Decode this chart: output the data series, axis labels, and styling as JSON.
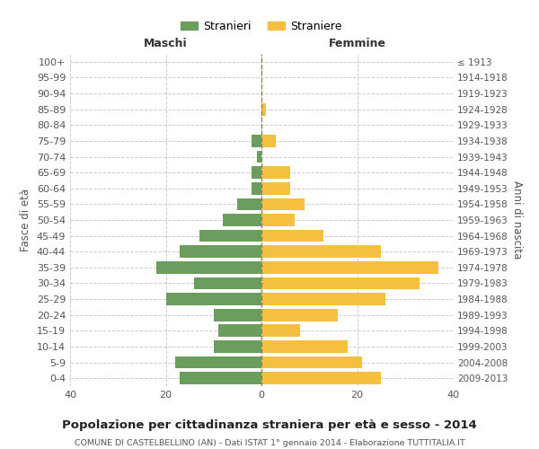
{
  "age_groups": [
    "0-4",
    "5-9",
    "10-14",
    "15-19",
    "20-24",
    "25-29",
    "30-34",
    "35-39",
    "40-44",
    "45-49",
    "50-54",
    "55-59",
    "60-64",
    "65-69",
    "70-74",
    "75-79",
    "80-84",
    "85-89",
    "90-94",
    "95-99",
    "100+"
  ],
  "birth_years": [
    "2009-2013",
    "2004-2008",
    "1999-2003",
    "1994-1998",
    "1989-1993",
    "1984-1988",
    "1979-1983",
    "1974-1978",
    "1969-1973",
    "1964-1968",
    "1959-1963",
    "1954-1958",
    "1949-1953",
    "1944-1948",
    "1939-1943",
    "1934-1938",
    "1929-1933",
    "1924-1928",
    "1919-1923",
    "1914-1918",
    "≤ 1913"
  ],
  "maschi": [
    17,
    18,
    10,
    9,
    10,
    20,
    14,
    22,
    17,
    13,
    8,
    5,
    2,
    2,
    1,
    2,
    0,
    0,
    0,
    0,
    0
  ],
  "femmine": [
    25,
    21,
    18,
    8,
    16,
    26,
    33,
    37,
    25,
    13,
    7,
    9,
    6,
    6,
    0,
    3,
    0,
    1,
    0,
    0,
    0
  ],
  "color_maschi": "#6b9e5e",
  "color_femmine": "#f5c040",
  "title": "Popolazione per cittadinanza straniera per età e sesso - 2014",
  "subtitle": "COMUNE DI CASTELBELLINO (AN) - Dati ISTAT 1° gennaio 2014 - Elaborazione TUTTITALIA.IT",
  "xlabel_left": "Maschi",
  "xlabel_right": "Femmine",
  "ylabel_left": "Fasce di età",
  "ylabel_right": "Anni di nascita",
  "legend_maschi": "Stranieri",
  "legend_femmine": "Straniere",
  "xlim": 40,
  "background_color": "#ffffff",
  "grid_color": "#cccccc"
}
